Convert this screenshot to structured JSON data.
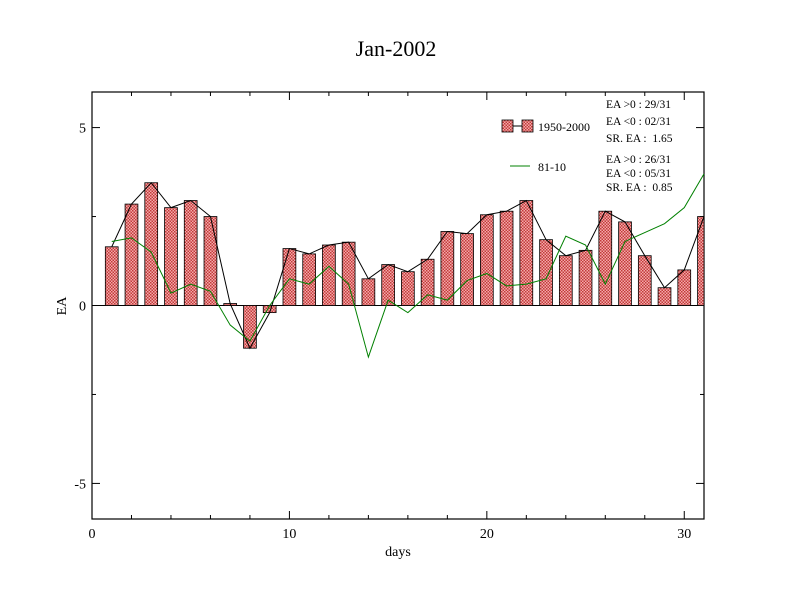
{
  "chart_data": {
    "type": "bar",
    "title": "Jan-2002",
    "xlabel": "days",
    "ylabel": "EA",
    "xlim": [
      0,
      31
    ],
    "ylim": [
      -6,
      6
    ],
    "x_ticks": [
      0,
      10,
      20,
      30
    ],
    "x_tick_labels": [
      "0",
      "10",
      "20",
      "30"
    ],
    "y_ticks": [
      -5,
      0,
      5
    ],
    "y_tick_labels": [
      "-5",
      "0",
      "5"
    ],
    "legend_position": "top-right",
    "x": [
      1,
      2,
      3,
      4,
      5,
      6,
      7,
      8,
      9,
      10,
      11,
      12,
      13,
      14,
      15,
      16,
      17,
      18,
      19,
      20,
      21,
      22,
      23,
      24,
      25,
      26,
      27,
      28,
      29,
      30,
      31
    ],
    "series": [
      {
        "name": "1950-2000",
        "kind": "bar+line",
        "color": "#e87a7a",
        "line_color": "#000000",
        "values": [
          1.65,
          2.85,
          3.45,
          2.75,
          2.95,
          2.5,
          0.05,
          -1.2,
          -0.2,
          1.6,
          1.45,
          1.7,
          1.78,
          0.75,
          1.15,
          0.95,
          1.3,
          2.08,
          2.02,
          2.55,
          2.65,
          2.95,
          1.85,
          1.4,
          1.55,
          2.65,
          2.35,
          1.4,
          0.5,
          1.0,
          2.5
        ],
        "stats": [
          "EA >0 : 29/31",
          "EA <0 : 02/31",
          "SR. EA :  1.65"
        ]
      },
      {
        "name": "81-10",
        "kind": "line",
        "color": "#008000",
        "values": [
          1.8,
          1.9,
          1.5,
          0.35,
          0.6,
          0.4,
          -0.55,
          -1.0,
          0.0,
          0.75,
          0.6,
          1.1,
          0.6,
          -1.45,
          0.15,
          -0.2,
          0.3,
          0.15,
          0.7,
          0.9,
          0.55,
          0.6,
          0.75,
          1.95,
          1.7,
          0.6,
          1.8,
          2.05,
          2.3,
          2.75,
          3.7
        ]
      }
    ],
    "stats_81_10": [
      "EA >0 : 26/31",
      "EA <0 : 05/31",
      "SR. EA :  0.85"
    ]
  }
}
